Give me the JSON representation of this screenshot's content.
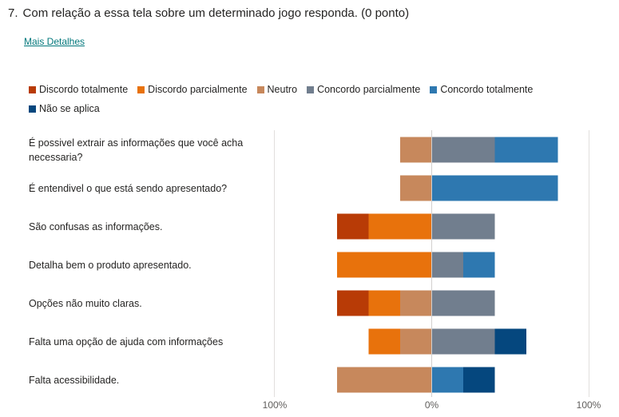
{
  "question": {
    "number": "7.",
    "text": "Com relação a essa tela sobre um determinado jogo responda. (0 ponto)",
    "details_link": "Mais Detalhes"
  },
  "chart_data": {
    "type": "bar",
    "subtype": "diverging-stacked",
    "legend_position": "top",
    "legend": [
      {
        "name": "Discordo totalmente",
        "color": "#b83b06"
      },
      {
        "name": "Discordo parcialmente",
        "color": "#e8720c"
      },
      {
        "name": "Neutro",
        "color": "#c7885c"
      },
      {
        "name": "Concordo parcialmente",
        "color": "#717e8e"
      },
      {
        "name": "Concordo totalmente",
        "color": "#2e78b0"
      },
      {
        "name": "Não se aplica",
        "color": "#05477e"
      }
    ],
    "categories": [
      "É possivel extrair as informações que você acha necessaria?",
      "É entendivel o que está sendo apresentado?",
      "São confusas as informações.",
      "Detalha bem o produto apresentado.",
      "Opções não muito claras.",
      "Falta uma opção de ajuda com informações",
      "Falta acessibilidade."
    ],
    "series": [
      {
        "name": "Discordo totalmente",
        "values": [
          0,
          0,
          20,
          0,
          20,
          0,
          0
        ]
      },
      {
        "name": "Discordo parcialmente",
        "values": [
          0,
          0,
          40,
          60,
          20,
          20,
          0
        ]
      },
      {
        "name": "Neutro",
        "values": [
          20,
          20,
          0,
          0,
          20,
          20,
          60
        ]
      },
      {
        "name": "Concordo parcialmente",
        "values": [
          40,
          0,
          40,
          20,
          40,
          40,
          0
        ]
      },
      {
        "name": "Concordo totalmente",
        "values": [
          40,
          80,
          0,
          20,
          0,
          0,
          20
        ]
      },
      {
        "name": "Não se aplica",
        "values": [
          0,
          0,
          0,
          0,
          0,
          20,
          20
        ]
      }
    ],
    "negative_series": [
      "Discordo totalmente",
      "Discordo parcialmente",
      "Neutro"
    ],
    "positive_series": [
      "Concordo parcialmente",
      "Concordo totalmente",
      "Não se aplica"
    ],
    "xlim": [
      -100,
      100
    ],
    "x_ticks": [
      "100%",
      "0%",
      "100%"
    ],
    "xlabel": "",
    "ylabel": "",
    "grid": true
  }
}
